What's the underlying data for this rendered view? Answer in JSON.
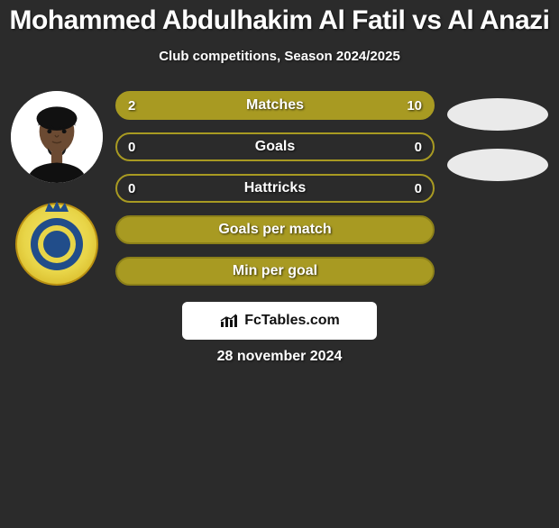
{
  "title": "Mohammed Abdulhakim Al Fatil vs Al Anazi",
  "subtitle": "Club competitions, Season 2024/2025",
  "date": "28 november 2024",
  "watermark": {
    "text": "FcTables.com"
  },
  "colors": {
    "accent": "#a89a22",
    "accent_dark": "#8c8019",
    "bar_bg": "#2b2b2b",
    "oval": "#eaeaea",
    "badge_outer": "#e8d548",
    "badge_inner": "#214d8a"
  },
  "bars": [
    {
      "label": "Matches",
      "left_value": "2",
      "right_value": "10",
      "left_fill_pct": 16.7,
      "bg_from": "accent",
      "border": "accent"
    },
    {
      "label": "Goals",
      "left_value": "0",
      "right_value": "0",
      "left_fill_pct": 0,
      "bg_from": "bar_bg",
      "border": "accent"
    },
    {
      "label": "Hattricks",
      "left_value": "0",
      "right_value": "0",
      "left_fill_pct": 0,
      "bg_from": "bar_bg",
      "border": "accent"
    },
    {
      "label": "Goals per match",
      "left_value": "",
      "right_value": "",
      "left_fill_pct": 100,
      "bg_from": "accent",
      "border": "accent_dark"
    },
    {
      "label": "Min per goal",
      "left_value": "",
      "right_value": "",
      "left_fill_pct": 100,
      "bg_from": "accent",
      "border": "accent_dark"
    }
  ],
  "right_ovals": 2,
  "typography": {
    "title_fontsize": 30,
    "subtitle_fontsize": 15,
    "bar_label_fontsize": 16,
    "bar_value_fontsize": 15,
    "date_fontsize": 16
  }
}
